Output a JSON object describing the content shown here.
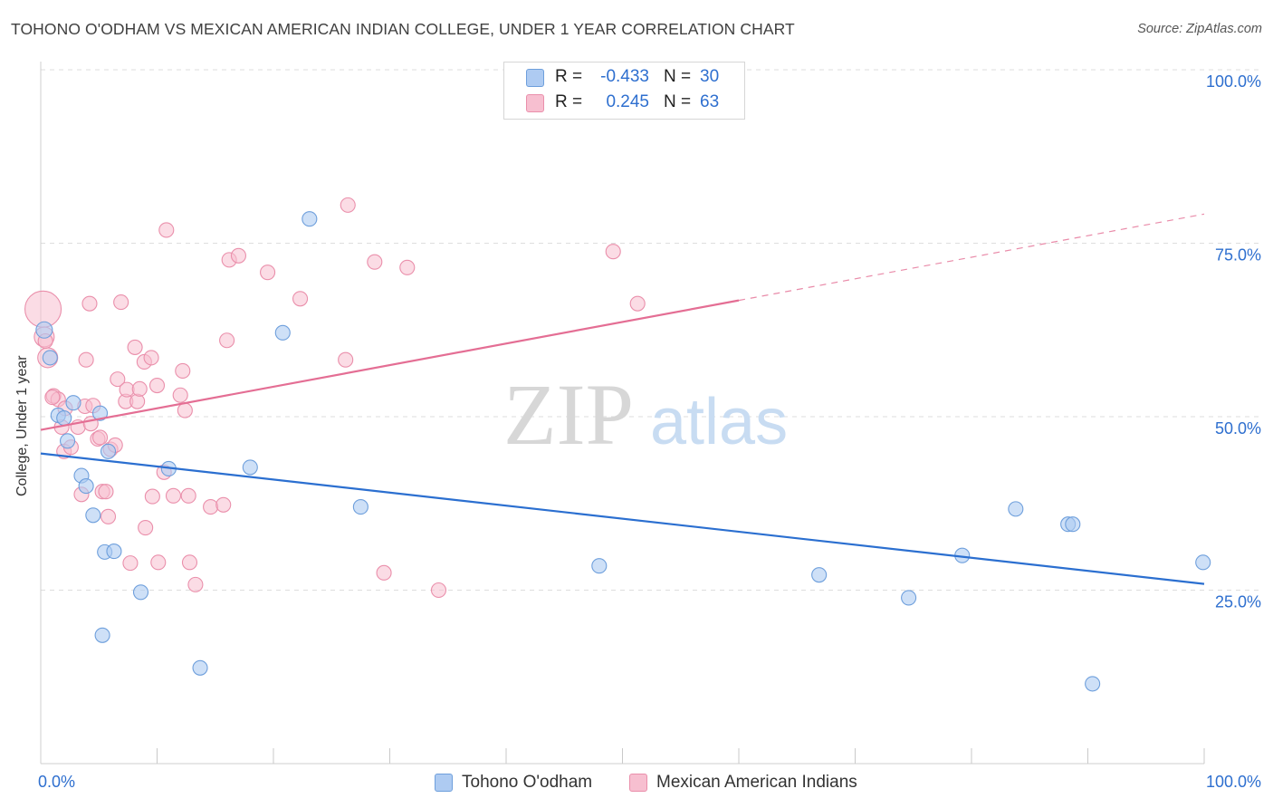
{
  "header": {
    "title": "TOHONO O'ODHAM VS MEXICAN AMERICAN INDIAN COLLEGE, UNDER 1 YEAR CORRELATION CHART",
    "source": "Source: ZipAtlas.com"
  },
  "legend": {
    "rows": [
      {
        "r_label": "R =",
        "r_value": "-0.433",
        "n_label": "N =",
        "n_value": "30"
      },
      {
        "r_label": "R =",
        "r_value": "0.245",
        "n_label": "N =",
        "n_value": "63"
      }
    ],
    "bottom": [
      "Tohono O'odham",
      "Mexican American Indians"
    ]
  },
  "watermark": {
    "zip": "ZIP",
    "atlas": "atlas"
  },
  "colors": {
    "blue_fill": "#aecbf2",
    "blue_stroke": "#6e9fdc",
    "blue_line": "#2b6fd0",
    "pink_fill": "#f7bfd0",
    "pink_stroke": "#ea8fab",
    "pink_line": "#e46e94",
    "axis_label": "#2e6fcf",
    "grid": "#dedede"
  },
  "chart_data": {
    "type": "scatter",
    "title": "TOHONO O'ODHAM VS MEXICAN AMERICAN INDIAN COLLEGE, UNDER 1 YEAR CORRELATION CHART",
    "xlabel": "",
    "ylabel": "College, Under 1 year",
    "xlim": [
      0,
      100
    ],
    "ylim": [
      0,
      100
    ],
    "x_tick_labels": [
      "0.0%",
      "100.0%"
    ],
    "y_tick_labels": [
      "25.0%",
      "50.0%",
      "75.0%",
      "100.0%"
    ],
    "y_ticks": [
      25,
      50,
      75,
      100
    ],
    "grid": true,
    "legend_position": "top-center",
    "series": [
      {
        "name": "Tohono O'odham",
        "color": "#aecbf2",
        "r": -0.433,
        "n": 30,
        "trend": {
          "x": [
            0,
            100
          ],
          "y": [
            44.7,
            25.9
          ],
          "dashed_from": null
        },
        "points": [
          {
            "x": 0.3,
            "y": 62.5
          },
          {
            "x": 0.8,
            "y": 58.5
          },
          {
            "x": 1.5,
            "y": 50.2
          },
          {
            "x": 2.0,
            "y": 49.8
          },
          {
            "x": 2.3,
            "y": 46.5
          },
          {
            "x": 2.8,
            "y": 52.0
          },
          {
            "x": 3.5,
            "y": 41.5
          },
          {
            "x": 3.9,
            "y": 40.0
          },
          {
            "x": 4.5,
            "y": 35.8
          },
          {
            "x": 5.1,
            "y": 50.5
          },
          {
            "x": 5.8,
            "y": 45.0
          },
          {
            "x": 5.5,
            "y": 30.5
          },
          {
            "x": 6.3,
            "y": 30.6
          },
          {
            "x": 5.3,
            "y": 18.5
          },
          {
            "x": 8.6,
            "y": 24.7
          },
          {
            "x": 11.0,
            "y": 42.5
          },
          {
            "x": 13.7,
            "y": 13.8
          },
          {
            "x": 18.0,
            "y": 42.7
          },
          {
            "x": 20.8,
            "y": 62.1
          },
          {
            "x": 23.1,
            "y": 78.5
          },
          {
            "x": 27.5,
            "y": 37.0
          },
          {
            "x": 48.0,
            "y": 28.5
          },
          {
            "x": 66.9,
            "y": 27.2
          },
          {
            "x": 74.6,
            "y": 23.9
          },
          {
            "x": 79.2,
            "y": 30.0
          },
          {
            "x": 83.8,
            "y": 36.7
          },
          {
            "x": 88.3,
            "y": 34.5
          },
          {
            "x": 88.7,
            "y": 34.5
          },
          {
            "x": 90.4,
            "y": 11.5
          },
          {
            "x": 99.9,
            "y": 29.0
          }
        ]
      },
      {
        "name": "Mexican American Indians",
        "color": "#f7bfd0",
        "r": 0.245,
        "n": 63,
        "trend": {
          "x": [
            0,
            100
          ],
          "y": [
            48.1,
            79.2
          ],
          "dashed_from": 60
        },
        "points": [
          {
            "x": 0.2,
            "y": 65.5
          },
          {
            "x": 0.3,
            "y": 61.5
          },
          {
            "x": 0.6,
            "y": 58.5
          },
          {
            "x": 1.1,
            "y": 53.0
          },
          {
            "x": 1.5,
            "y": 52.5
          },
          {
            "x": 1.8,
            "y": 48.5
          },
          {
            "x": 2.0,
            "y": 45.0
          },
          {
            "x": 2.1,
            "y": 51.2
          },
          {
            "x": 2.6,
            "y": 45.6
          },
          {
            "x": 3.2,
            "y": 48.5
          },
          {
            "x": 3.5,
            "y": 38.8
          },
          {
            "x": 3.8,
            "y": 51.5
          },
          {
            "x": 3.9,
            "y": 58.2
          },
          {
            "x": 4.2,
            "y": 66.3
          },
          {
            "x": 4.3,
            "y": 49.0
          },
          {
            "x": 4.5,
            "y": 51.6
          },
          {
            "x": 4.9,
            "y": 46.8
          },
          {
            "x": 5.1,
            "y": 47.0
          },
          {
            "x": 5.3,
            "y": 39.2
          },
          {
            "x": 5.6,
            "y": 39.2
          },
          {
            "x": 5.8,
            "y": 35.6
          },
          {
            "x": 6.0,
            "y": 45.3
          },
          {
            "x": 6.4,
            "y": 45.9
          },
          {
            "x": 6.6,
            "y": 55.4
          },
          {
            "x": 6.9,
            "y": 66.5
          },
          {
            "x": 7.3,
            "y": 52.2
          },
          {
            "x": 7.4,
            "y": 53.9
          },
          {
            "x": 7.7,
            "y": 28.9
          },
          {
            "x": 8.1,
            "y": 60.0
          },
          {
            "x": 8.3,
            "y": 52.2
          },
          {
            "x": 8.5,
            "y": 54.0
          },
          {
            "x": 8.9,
            "y": 57.9
          },
          {
            "x": 9.0,
            "y": 34.0
          },
          {
            "x": 9.5,
            "y": 58.5
          },
          {
            "x": 9.6,
            "y": 38.5
          },
          {
            "x": 10.0,
            "y": 54.5
          },
          {
            "x": 10.1,
            "y": 29.0
          },
          {
            "x": 10.6,
            "y": 42.0
          },
          {
            "x": 10.8,
            "y": 76.9
          },
          {
            "x": 11.4,
            "y": 38.6
          },
          {
            "x": 12.0,
            "y": 53.1
          },
          {
            "x": 12.2,
            "y": 56.6
          },
          {
            "x": 12.4,
            "y": 50.9
          },
          {
            "x": 12.7,
            "y": 38.6
          },
          {
            "x": 12.8,
            "y": 29.0
          },
          {
            "x": 13.3,
            "y": 25.8
          },
          {
            "x": 14.6,
            "y": 37.0
          },
          {
            "x": 15.7,
            "y": 37.3
          },
          {
            "x": 16.0,
            "y": 61.0
          },
          {
            "x": 16.2,
            "y": 72.6
          },
          {
            "x": 17.0,
            "y": 73.2
          },
          {
            "x": 19.5,
            "y": 70.8
          },
          {
            "x": 22.3,
            "y": 67.0
          },
          {
            "x": 26.2,
            "y": 58.2
          },
          {
            "x": 26.4,
            "y": 80.5
          },
          {
            "x": 28.7,
            "y": 72.3
          },
          {
            "x": 29.5,
            "y": 27.5
          },
          {
            "x": 31.5,
            "y": 71.5
          },
          {
            "x": 34.2,
            "y": 25.0
          },
          {
            "x": 49.2,
            "y": 73.8
          },
          {
            "x": 51.3,
            "y": 66.3
          },
          {
            "x": 0.4,
            "y": 60.9
          },
          {
            "x": 1.0,
            "y": 52.8
          }
        ]
      }
    ]
  }
}
